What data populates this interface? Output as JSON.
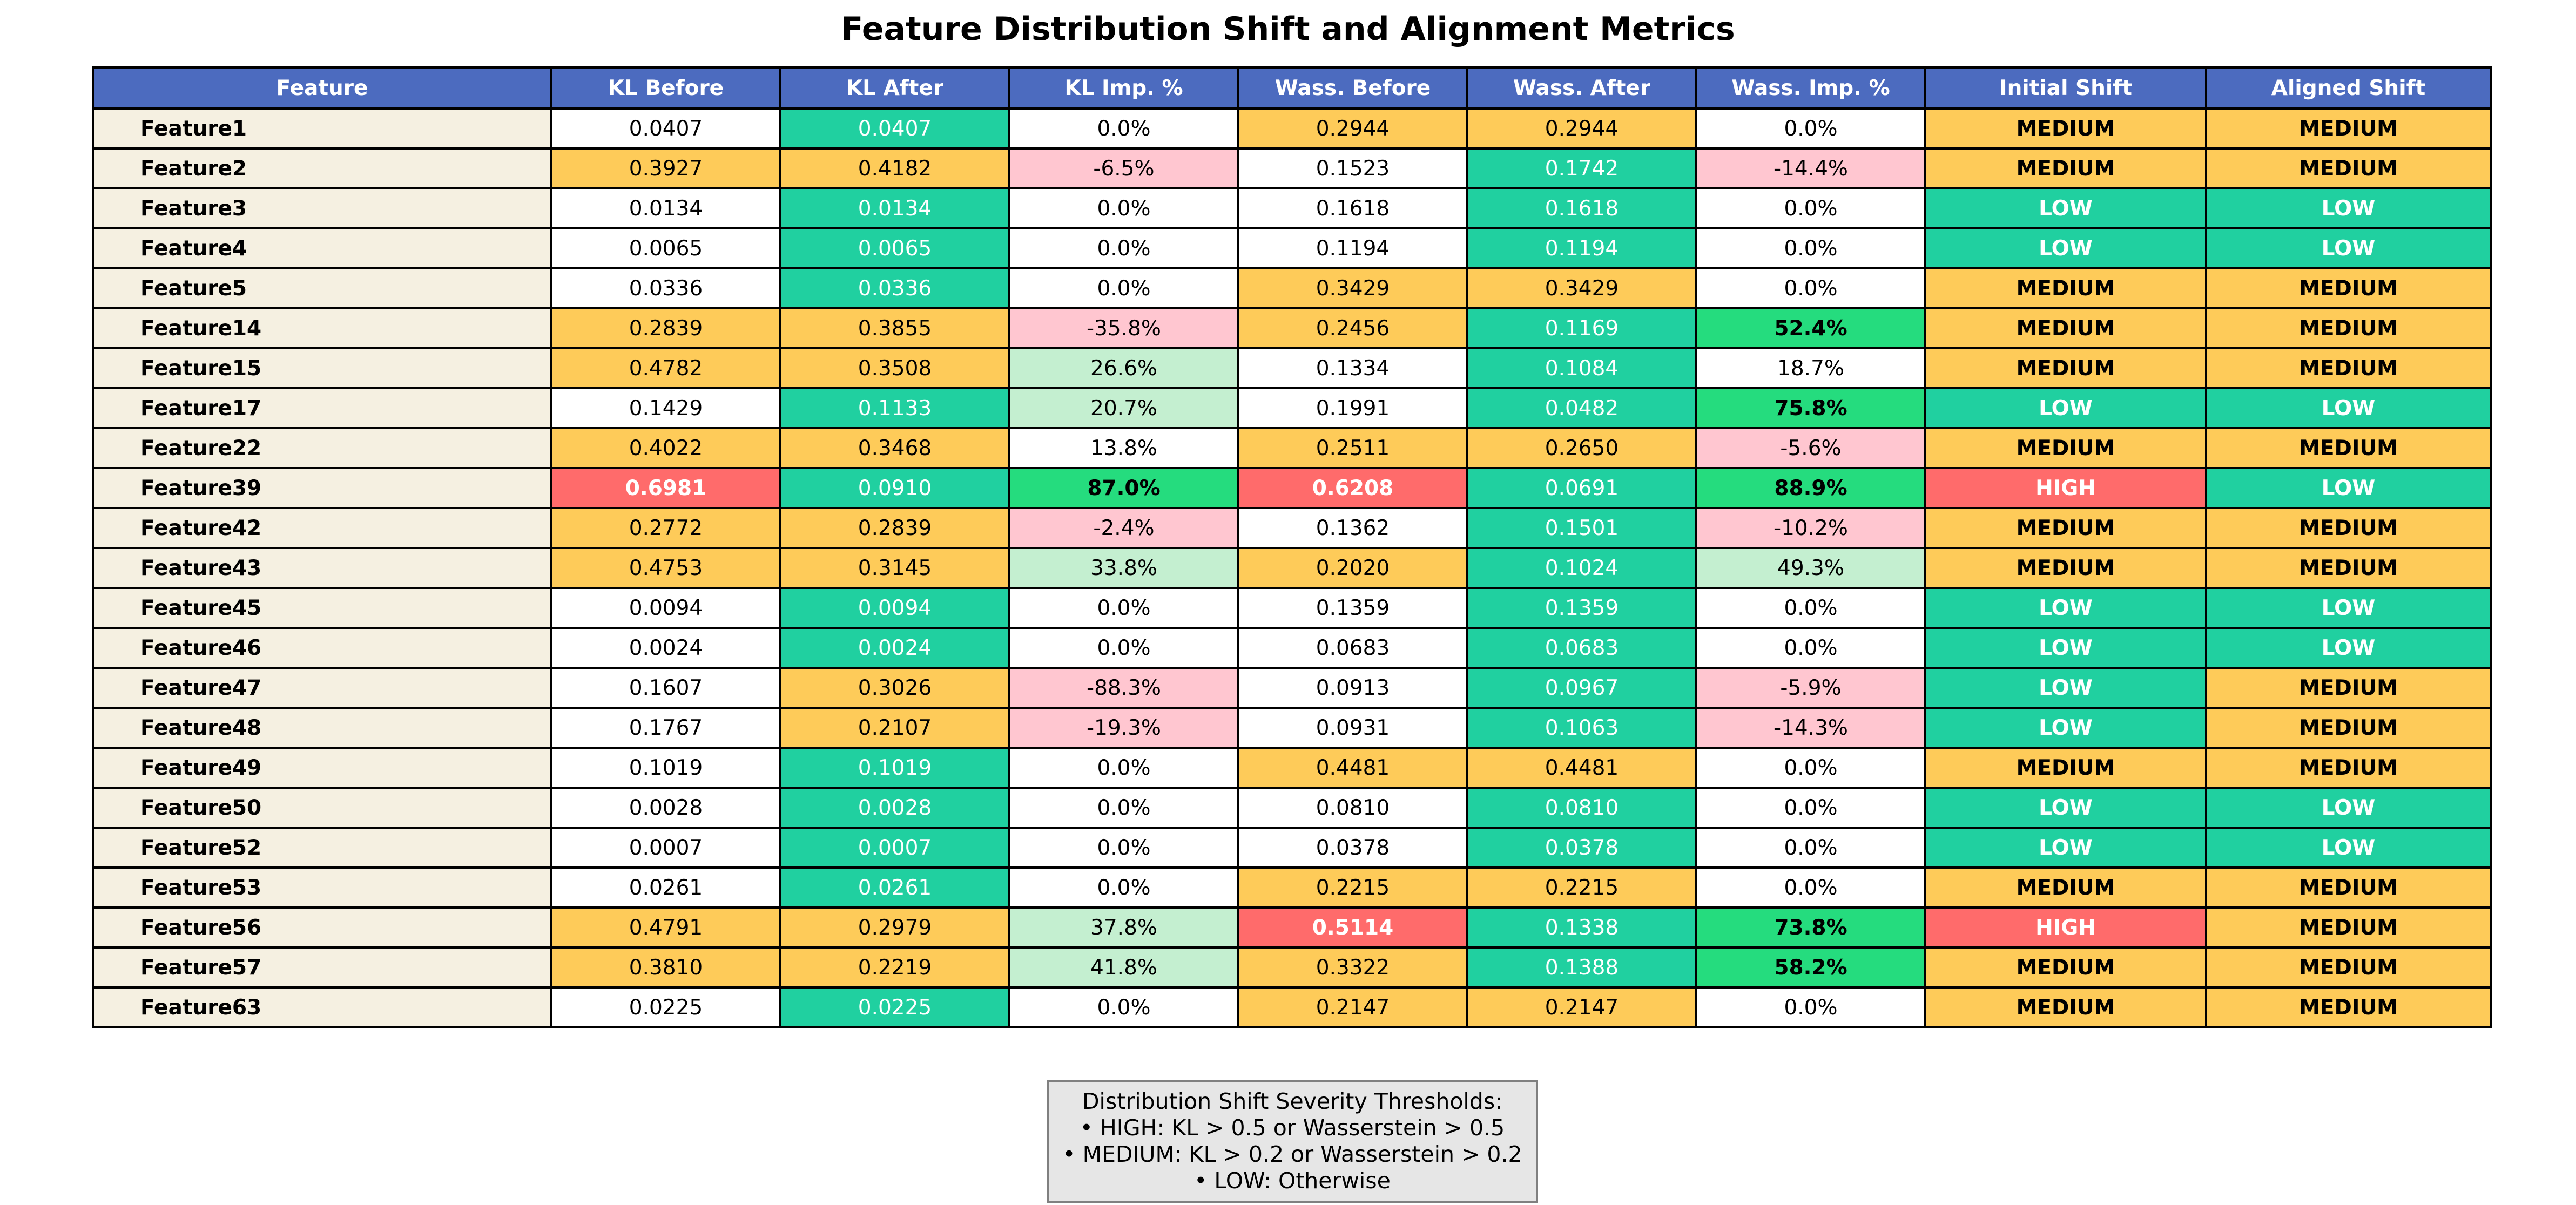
{
  "chart_data": {
    "type": "table",
    "title": "Feature Distribution Shift and Alignment Metrics",
    "columns": [
      "Feature",
      "KL Before",
      "KL After",
      "KL Imp. %",
      "Wass. Before",
      "Wass. After",
      "Wass. Imp. %",
      "Initial Shift",
      "Aligned Shift"
    ],
    "rows": [
      [
        "Feature1",
        "0.0407",
        "0.0407",
        "0.0%",
        "0.2944",
        "0.2944",
        "0.0%",
        "MEDIUM",
        "MEDIUM"
      ],
      [
        "Feature2",
        "0.3927",
        "0.4182",
        "-6.5%",
        "0.1523",
        "0.1742",
        "-14.4%",
        "MEDIUM",
        "MEDIUM"
      ],
      [
        "Feature3",
        "0.0134",
        "0.0134",
        "0.0%",
        "0.1618",
        "0.1618",
        "0.0%",
        "LOW",
        "LOW"
      ],
      [
        "Feature4",
        "0.0065",
        "0.0065",
        "0.0%",
        "0.1194",
        "0.1194",
        "0.0%",
        "LOW",
        "LOW"
      ],
      [
        "Feature5",
        "0.0336",
        "0.0336",
        "0.0%",
        "0.3429",
        "0.3429",
        "0.0%",
        "MEDIUM",
        "MEDIUM"
      ],
      [
        "Feature14",
        "0.2839",
        "0.3855",
        "-35.8%",
        "0.2456",
        "0.1169",
        "52.4%",
        "MEDIUM",
        "MEDIUM"
      ],
      [
        "Feature15",
        "0.4782",
        "0.3508",
        "26.6%",
        "0.1334",
        "0.1084",
        "18.7%",
        "MEDIUM",
        "MEDIUM"
      ],
      [
        "Feature17",
        "0.1429",
        "0.1133",
        "20.7%",
        "0.1991",
        "0.0482",
        "75.8%",
        "LOW",
        "LOW"
      ],
      [
        "Feature22",
        "0.4022",
        "0.3468",
        "13.8%",
        "0.2511",
        "0.2650",
        "-5.6%",
        "MEDIUM",
        "MEDIUM"
      ],
      [
        "Feature39",
        "0.6981",
        "0.0910",
        "87.0%",
        "0.6208",
        "0.0691",
        "88.9%",
        "HIGH",
        "LOW"
      ],
      [
        "Feature42",
        "0.2772",
        "0.2839",
        "-2.4%",
        "0.1362",
        "0.1501",
        "-10.2%",
        "MEDIUM",
        "MEDIUM"
      ],
      [
        "Feature43",
        "0.4753",
        "0.3145",
        "33.8%",
        "0.2020",
        "0.1024",
        "49.3%",
        "MEDIUM",
        "MEDIUM"
      ],
      [
        "Feature45",
        "0.0094",
        "0.0094",
        "0.0%",
        "0.1359",
        "0.1359",
        "0.0%",
        "LOW",
        "LOW"
      ],
      [
        "Feature46",
        "0.0024",
        "0.0024",
        "0.0%",
        "0.0683",
        "0.0683",
        "0.0%",
        "LOW",
        "LOW"
      ],
      [
        "Feature47",
        "0.1607",
        "0.3026",
        "-88.3%",
        "0.0913",
        "0.0967",
        "-5.9%",
        "LOW",
        "MEDIUM"
      ],
      [
        "Feature48",
        "0.1767",
        "0.2107",
        "-19.3%",
        "0.0931",
        "0.1063",
        "-14.3%",
        "LOW",
        "MEDIUM"
      ],
      [
        "Feature49",
        "0.1019",
        "0.1019",
        "0.0%",
        "0.4481",
        "0.4481",
        "0.0%",
        "MEDIUM",
        "MEDIUM"
      ],
      [
        "Feature50",
        "0.0028",
        "0.0028",
        "0.0%",
        "0.0810",
        "0.0810",
        "0.0%",
        "LOW",
        "LOW"
      ],
      [
        "Feature52",
        "0.0007",
        "0.0007",
        "0.0%",
        "0.0378",
        "0.0378",
        "0.0%",
        "LOW",
        "LOW"
      ],
      [
        "Feature53",
        "0.0261",
        "0.0261",
        "0.0%",
        "0.2215",
        "0.2215",
        "0.0%",
        "MEDIUM",
        "MEDIUM"
      ],
      [
        "Feature56",
        "0.4791",
        "0.2979",
        "37.8%",
        "0.5114",
        "0.1338",
        "73.8%",
        "HIGH",
        "MEDIUM"
      ],
      [
        "Feature57",
        "0.3810",
        "0.2219",
        "41.8%",
        "0.3322",
        "0.1388",
        "58.2%",
        "MEDIUM",
        "MEDIUM"
      ],
      [
        "Feature63",
        "0.0225",
        "0.0225",
        "0.0%",
        "0.2147",
        "0.2147",
        "0.0%",
        "MEDIUM",
        "MEDIUM"
      ]
    ],
    "thresholds": {
      "high": 0.5,
      "medium": 0.2,
      "improvement_highlight": 50
    }
  },
  "colors": {
    "header": "#4c6bbf",
    "feature_cell": "#f5f0e1",
    "low": "#20d0a0",
    "medium": "#fecb59",
    "high": "#ff6b6b",
    "neutral": "#ffffff",
    "negative_improvement": "#ffc6d0",
    "positive_improvement": "#c4efd0",
    "strong_improvement": "#25dc7e"
  },
  "legend": {
    "lines": [
      "Distribution Shift Severity Thresholds:",
      "• HIGH: KL > 0.5 or Wasserstein > 0.5",
      "• MEDIUM: KL > 0.2 or Wasserstein > 0.2",
      "• LOW: Otherwise"
    ]
  }
}
